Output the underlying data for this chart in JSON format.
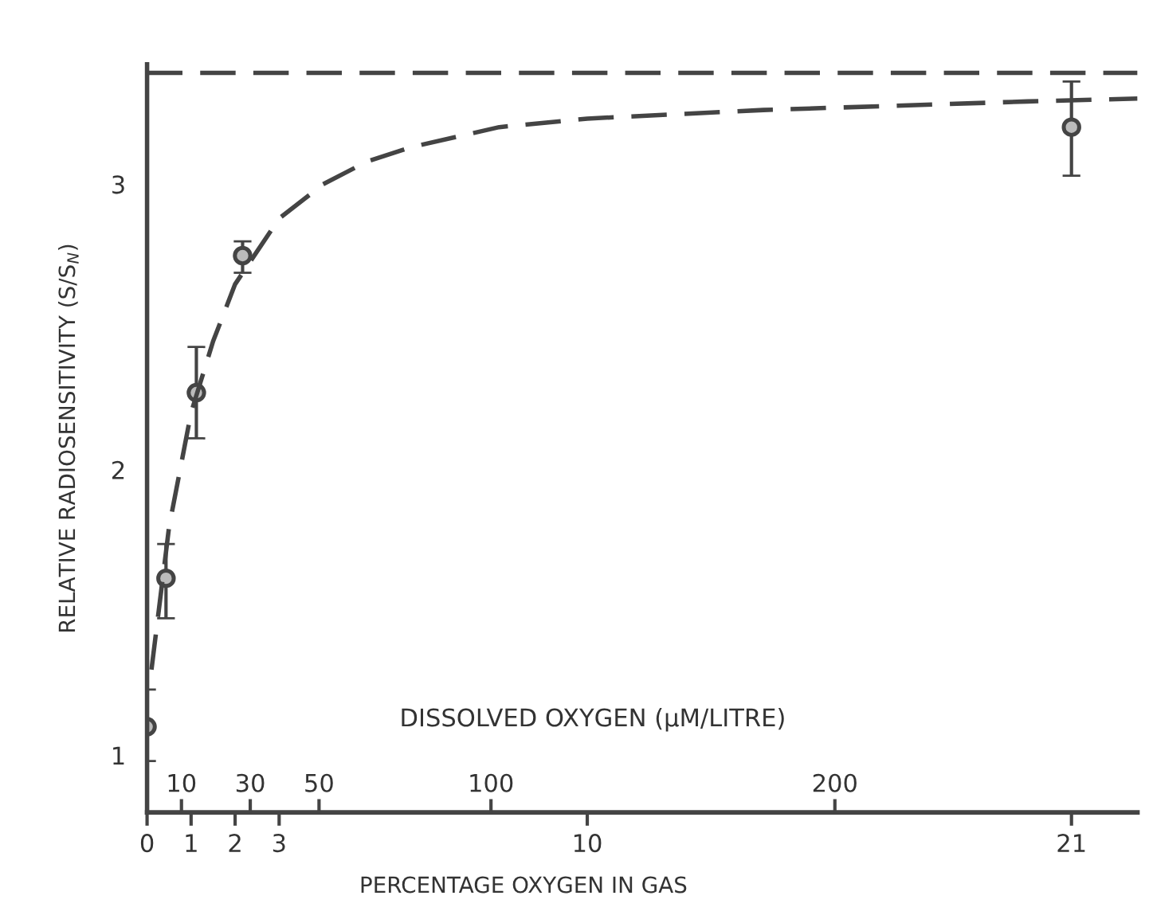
{
  "chart_data": {
    "type": "scatter",
    "xlabel": "PERCENTAGE OXYGEN IN GAS",
    "ylabel": "RELATIVE RADIOSENSITIVITY (S/S$_{N}$)",
    "x2label": "DISSOLVED OXYGEN (µM/LITRE)",
    "xlim": [
      0,
      22.5
    ],
    "xticks": [
      0,
      1,
      2,
      3,
      10,
      21
    ],
    "x2lim": [
      0,
      288
    ],
    "x2ticks": [
      10,
      30,
      50,
      100,
      200
    ],
    "ylim": [
      0.8,
      3.42
    ],
    "yticks": [
      1,
      2,
      3
    ],
    "grid": false,
    "legend": false,
    "series": [
      {
        "color": "#444444",
        "marker": "circle",
        "x": [
          0,
          0.43,
          1.12,
          2.17,
          21
        ],
        "values": [
          1.1,
          1.62,
          2.27,
          2.75,
          3.2
        ],
        "errors": [
          [
            0.98,
            1.23
          ],
          [
            1.48,
            1.74
          ],
          [
            2.11,
            2.43
          ],
          [
            2.69,
            2.8
          ],
          [
            3.03,
            3.36
          ]
        ]
      },
      {
        "type": "line",
        "color": "#444444",
        "marker": "none",
        "line_style": "dashed",
        "x": [
          0.1,
          0.5,
          1,
          1.5,
          2,
          3,
          4,
          5,
          6,
          8,
          10,
          14,
          20,
          22.5
        ],
        "values": [
          1.3,
          1.8,
          2.2,
          2.45,
          2.65,
          2.88,
          3.0,
          3.08,
          3.13,
          3.2,
          3.23,
          3.26,
          3.29,
          3.3
        ]
      }
    ],
    "ref_lines": [
      {
        "axis": "y",
        "value": 3.39,
        "color": "#444444",
        "line_style": "dashed"
      }
    ]
  }
}
